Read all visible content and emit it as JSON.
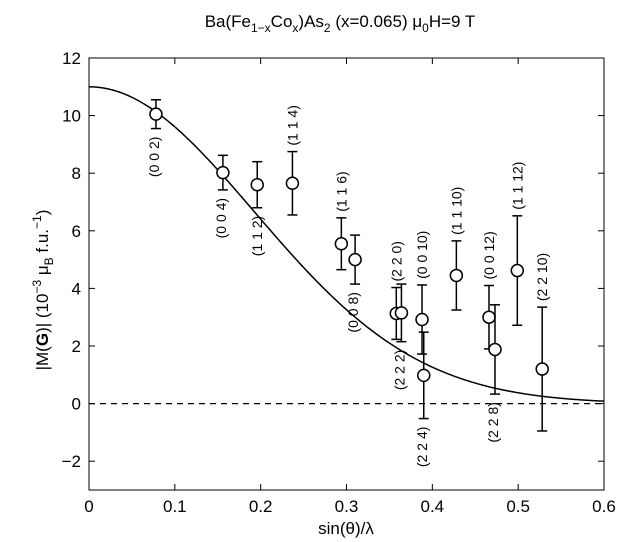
{
  "chart_data": {
    "type": "scatter",
    "title": {
      "prefix": "Ba(Fe",
      "sub1": "1−x",
      "mid": "Co",
      "sub2": "x",
      "suffix": ")As",
      "sub3": "2",
      "tail1": " (x=0.065) μ",
      "sub4": "0",
      "tail2": "H=9 T"
    },
    "xlabel": "sin(θ)/λ",
    "ylabel": {
      "part1": "|M(",
      "bold": "G",
      "part2": ")| (10",
      "sup1": "−3",
      "part3": " μ",
      "sub1": "B",
      "part4": " f.u.",
      "sup2": "−1",
      "part5": ")"
    },
    "xlim": [
      0,
      0.6
    ],
    "ylim": [
      -3,
      12
    ],
    "xticks": [
      "0",
      "0.1",
      "0.2",
      "0.3",
      "0.4",
      "0.5",
      "0.6"
    ],
    "yticks": [
      "−2",
      "0",
      "2",
      "4",
      "6",
      "8",
      "10",
      "12"
    ],
    "grid": false,
    "points": [
      {
        "x": 0.078,
        "y": 10.05,
        "err": 0.5,
        "label": "(0 0 2)"
      },
      {
        "x": 0.156,
        "y": 8.02,
        "err": 0.6,
        "label": "(0 0 4)"
      },
      {
        "x": 0.196,
        "y": 7.6,
        "err": 0.8,
        "label": "(1 1 2)"
      },
      {
        "x": 0.237,
        "y": 7.65,
        "err": 1.1,
        "label": "(1 1 4)"
      },
      {
        "x": 0.294,
        "y": 5.55,
        "err": 0.9,
        "label": "(1 1 6)"
      },
      {
        "x": 0.31,
        "y": 5.0,
        "err": 0.85,
        "label": "(0 0 8)"
      },
      {
        "x": 0.358,
        "y": 3.13,
        "err": 0.9,
        "label": "(2 2 0)"
      },
      {
        "x": 0.364,
        "y": 3.15,
        "err": 1.0,
        "label": "(2 2 2)"
      },
      {
        "x": 0.388,
        "y": 2.92,
        "err": 1.2,
        "label": "(0 0 10)"
      },
      {
        "x": 0.39,
        "y": 0.98,
        "err": 1.5,
        "label": "(2 2 4)"
      },
      {
        "x": 0.428,
        "y": 4.45,
        "err": 1.2,
        "label": "(1 1 10)"
      },
      {
        "x": 0.466,
        "y": 3.0,
        "err": 1.1,
        "label": "(0 0 12)"
      },
      {
        "x": 0.473,
        "y": 1.88,
        "err": 1.55,
        "label": "(2 2 8)"
      },
      {
        "x": 0.499,
        "y": 4.62,
        "err": 1.9,
        "label": "(1 1 12)"
      },
      {
        "x": 0.528,
        "y": 1.2,
        "err": 2.15,
        "label": "(2 2 10)"
      }
    ],
    "fit_curve": {
      "amplitude": 11.0,
      "gaussian_width": 0.272
    },
    "reference_line": {
      "y": 0,
      "style": "dashed"
    }
  }
}
